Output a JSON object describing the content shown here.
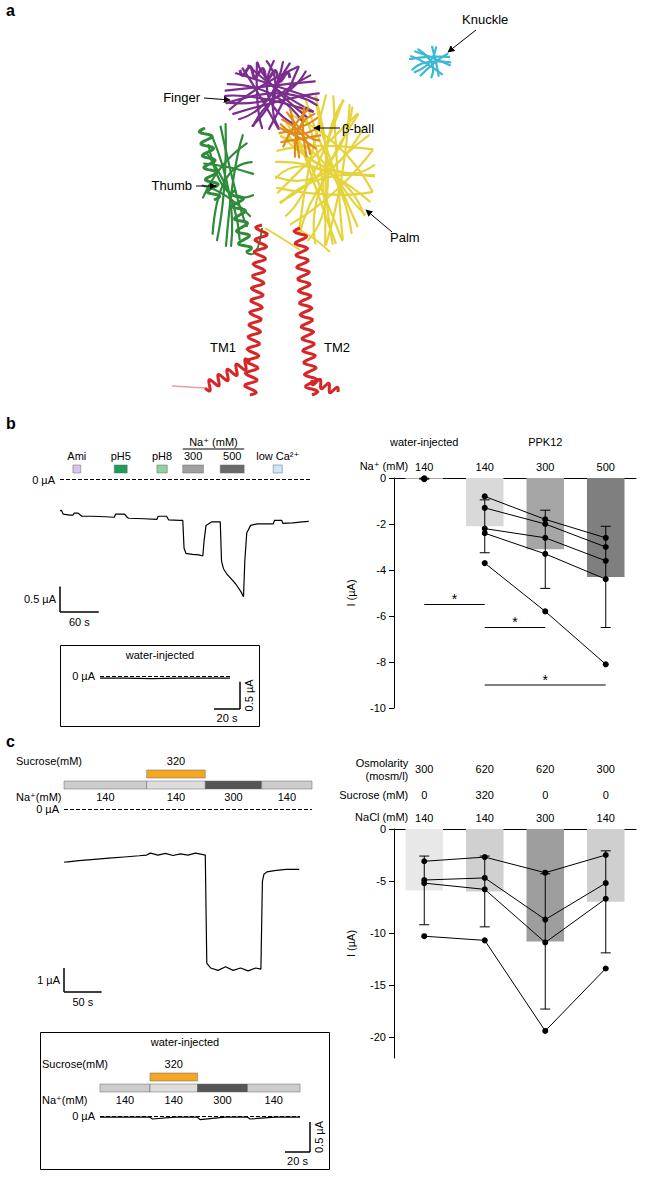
{
  "structure": {
    "letter": "a",
    "labels": {
      "knuckle": "Knuckle",
      "finger": "Finger",
      "beta_ball": "β-ball",
      "thumb": "Thumb",
      "palm": "Palm",
      "tm1": "TM1",
      "tm2": "TM2"
    }
  },
  "chart_data": [
    {
      "panel": "b",
      "type": "line",
      "tick_labels": false,
      "color": "#000000",
      "x": [
        0,
        2,
        5,
        15,
        20,
        22,
        28,
        32,
        34,
        50,
        70,
        84,
        86,
        100,
        104,
        106,
        130,
        150,
        152,
        165,
        168,
        185,
        190,
        192,
        195,
        205,
        215,
        221,
        223,
        226,
        235,
        248,
        250,
        253,
        258,
        265,
        272,
        280,
        284,
        286,
        289,
        295,
        305,
        320,
        330,
        332,
        343,
        345,
        360,
        375,
        385
      ],
      "values": [
        -0.62,
        -0.6,
        -0.68,
        -0.7,
        -0.7,
        -0.66,
        -0.66,
        -0.7,
        -0.72,
        -0.72,
        -0.73,
        -0.74,
        -0.68,
        -0.68,
        -0.74,
        -0.76,
        -0.77,
        -0.78,
        -0.72,
        -0.72,
        -0.79,
        -0.8,
        -0.8,
        -1.35,
        -1.45,
        -1.47,
        -1.48,
        -1.5,
        -1.2,
        -0.9,
        -0.83,
        -0.83,
        -1.6,
        -1.75,
        -1.85,
        -1.95,
        -2.05,
        -2.2,
        -2.3,
        -1.6,
        -1.05,
        -0.9,
        -0.87,
        -0.87,
        -0.87,
        -0.8,
        -0.8,
        -0.86,
        -0.85,
        -0.83,
        -0.82
      ],
      "xlim": [
        0,
        390
      ],
      "ylim": [
        -2.6,
        0.05
      ],
      "zero_line": {
        "value": 0,
        "label": "0 µA"
      },
      "stimulus_rows": [
        {
          "items": [
            {
              "label": "Ami",
              "start": 20,
              "end": 32,
              "color": "#d6c4ec"
            },
            {
              "label": "pH5",
              "start": 84,
              "end": 104,
              "color": "#1b9e5a"
            },
            {
              "label": "pH8",
              "start": 150,
              "end": 166,
              "color": "#8fd19e"
            },
            {
              "label": "300",
              "start": 190,
              "end": 222,
              "color": "#a0a0a0"
            },
            {
              "label": "500",
              "start": 248,
              "end": 285,
              "color": "#6b6b6b"
            },
            {
              "label": "low Ca²⁺",
              "start": 330,
              "end": 344,
              "color": "#cfe6f7"
            }
          ]
        }
      ],
      "stimulus_groups": [
        {
          "label": "Na⁺ (mM)",
          "row": 0,
          "from": 3,
          "to": 4
        }
      ],
      "scale_bar": {
        "x": 60,
        "x_label": "60 s",
        "y": 0.5,
        "y_label": "0.5 µA"
      }
    },
    {
      "panel": "b",
      "type": "line",
      "title": "water-injected",
      "tick_labels": false,
      "color": "#000000",
      "x": [
        0,
        20,
        40,
        60,
        80,
        100
      ],
      "values": [
        -0.03,
        -0.03,
        -0.04,
        -0.03,
        -0.03,
        -0.03
      ],
      "xlim": [
        0,
        100
      ],
      "ylim": [
        -0.6,
        0.1
      ],
      "zero_line": {
        "value": 0,
        "label": "0 µA"
      },
      "scale_bar": {
        "x": 20,
        "x_label": "20 s",
        "y": 0.5,
        "y_label": "0.5 µA"
      }
    },
    {
      "panel": "b",
      "type": "bar",
      "categories": [
        "140",
        "140",
        "300",
        "500"
      ],
      "category_label": "Na⁺ (mM)",
      "groups": [
        {
          "label": "water-injected",
          "from": 0,
          "to": 0
        },
        {
          "label": "PPK12",
          "from": 1,
          "to": 3
        }
      ],
      "values": [
        -0.03,
        -2.1,
        -3.1,
        -4.3
      ],
      "errors": [
        0.02,
        1.15,
        1.7,
        2.2
      ],
      "colors": [
        "#e0e0e0",
        "#d9d9d9",
        "#a6a6a6",
        "#7f7f7f"
      ],
      "individual": [
        [
          -0.01,
          null,
          null,
          null
        ],
        [
          -0.03,
          null,
          null,
          null
        ],
        [
          -0.05,
          null,
          null,
          null
        ],
        [
          null,
          -0.8,
          -1.8,
          -2.6
        ],
        [
          null,
          -1.3,
          -2.0,
          -3.0
        ],
        [
          null,
          -2.2,
          -2.6,
          -3.6
        ],
        [
          null,
          -2.4,
          -3.3,
          -4.4
        ],
        [
          null,
          -3.7,
          -5.8,
          -8.1
        ]
      ],
      "significance": [
        {
          "from": 0,
          "to": 1,
          "y": -5.5,
          "label": "*"
        },
        {
          "from": 1,
          "to": 2,
          "y": -6.5,
          "label": "*"
        },
        {
          "from": 1,
          "to": 3,
          "y": -9.0,
          "label": "*"
        }
      ],
      "ylabel": "I (µA)",
      "ylim": [
        -10,
        0
      ],
      "yticks": [
        0,
        -2,
        -4,
        -6,
        -8,
        -10
      ],
      "grid": false
    },
    {
      "panel": "c",
      "type": "line",
      "tick_labels": false,
      "color": "#000000",
      "x": [
        0,
        5,
        20,
        40,
        60,
        80,
        100,
        110,
        115,
        125,
        135,
        145,
        155,
        165,
        175,
        185,
        188,
        190,
        195,
        205,
        215,
        225,
        235,
        245,
        255,
        262,
        264,
        266,
        270,
        280,
        295,
        313
      ],
      "values": [
        -2.2,
        -2.18,
        -2.13,
        -2.08,
        -2.03,
        -1.98,
        -1.93,
        -1.9,
        -1.82,
        -1.9,
        -1.83,
        -1.92,
        -1.85,
        -1.9,
        -1.82,
        -1.88,
        -1.9,
        -6.4,
        -6.6,
        -6.7,
        -6.55,
        -6.7,
        -6.6,
        -6.72,
        -6.6,
        -6.65,
        -3.0,
        -2.7,
        -2.6,
        -2.55,
        -2.5,
        -2.5
      ],
      "xlim": [
        0,
        330
      ],
      "ylim": [
        -7.6,
        0.1
      ],
      "zero_line": {
        "value": 0,
        "label": "0 µA"
      },
      "stimulus_rows": [
        {
          "label": "Sucrose(mM)",
          "items": [
            {
              "label": "320",
              "start": 110,
              "end": 188,
              "color": "#f5a623"
            }
          ]
        },
        {
          "label": "Na⁺(mM)",
          "items": [
            {
              "label": "140",
              "start": 0,
              "end": 110,
              "color": "#cccccc"
            },
            {
              "label": "140",
              "start": 110,
              "end": 188,
              "color": "#dddddd"
            },
            {
              "label": "300",
              "start": 188,
              "end": 263,
              "color": "#555555"
            },
            {
              "label": "140",
              "start": 263,
              "end": 330,
              "color": "#cccccc"
            }
          ]
        }
      ],
      "scale_bar": {
        "x": 50,
        "x_label": "50 s",
        "y": 1,
        "y_label": "1 µA"
      }
    },
    {
      "panel": "c",
      "type": "line",
      "title": "water-injected",
      "tick_labels": false,
      "color": "#000000",
      "x": [
        0,
        20,
        40,
        42,
        60,
        78,
        80,
        100,
        118,
        120,
        140,
        160
      ],
      "values": [
        -0.02,
        -0.02,
        -0.02,
        -0.05,
        -0.02,
        -0.02,
        -0.06,
        -0.02,
        -0.02,
        -0.05,
        -0.02,
        -0.02
      ],
      "xlim": [
        0,
        160
      ],
      "ylim": [
        -0.6,
        0.1
      ],
      "zero_line": {
        "value": 0,
        "label": "0 µA"
      },
      "stimulus_rows": [
        {
          "label": "Sucrose(mM)",
          "items": [
            {
              "label": "320",
              "start": 40,
              "end": 78,
              "color": "#f5a623"
            }
          ]
        },
        {
          "label": "Na⁺(mM)",
          "items": [
            {
              "label": "140",
              "start": 0,
              "end": 40,
              "color": "#cccccc"
            },
            {
              "label": "140",
              "start": 40,
              "end": 78,
              "color": "#dddddd"
            },
            {
              "label": "300",
              "start": 78,
              "end": 118,
              "color": "#555555"
            },
            {
              "label": "140",
              "start": 118,
              "end": 160,
              "color": "#cccccc"
            }
          ]
        }
      ],
      "scale_bar": {
        "x": 20,
        "x_label": "20 s",
        "y": 0.5,
        "y_label": "0.5 µA"
      }
    },
    {
      "panel": "c",
      "type": "bar",
      "categories": [
        "140",
        "140",
        "300",
        "140"
      ],
      "category_label": "NaCl (mM)",
      "header_rows": [
        {
          "label": "Osmolarity (mosm/l)",
          "values": [
            300,
            620,
            620,
            300
          ]
        },
        {
          "label": "Sucrose (mM)",
          "values": [
            0,
            320,
            0,
            0
          ]
        }
      ],
      "values": [
        -5.9,
        -6.0,
        -10.8,
        -7.0
      ],
      "errors": [
        3.3,
        3.4,
        6.5,
        4.9
      ],
      "colors": [
        "#e8e8e8",
        "#d0d0d0",
        "#9e9e9e",
        "#cfcfcf"
      ],
      "individual": [
        [
          -3.1,
          -2.7,
          -4.2,
          -2.5
        ],
        [
          -4.9,
          -4.7,
          -8.7,
          -5.2
        ],
        [
          -5.2,
          -5.8,
          -10.9,
          -6.7
        ],
        [
          -10.3,
          -10.7,
          -19.4,
          -13.4
        ]
      ],
      "ylabel": "I (µA)",
      "ylim": [
        -22,
        0
      ],
      "yticks": [
        0,
        -5,
        -10,
        -15,
        -20
      ],
      "grid": false
    }
  ]
}
